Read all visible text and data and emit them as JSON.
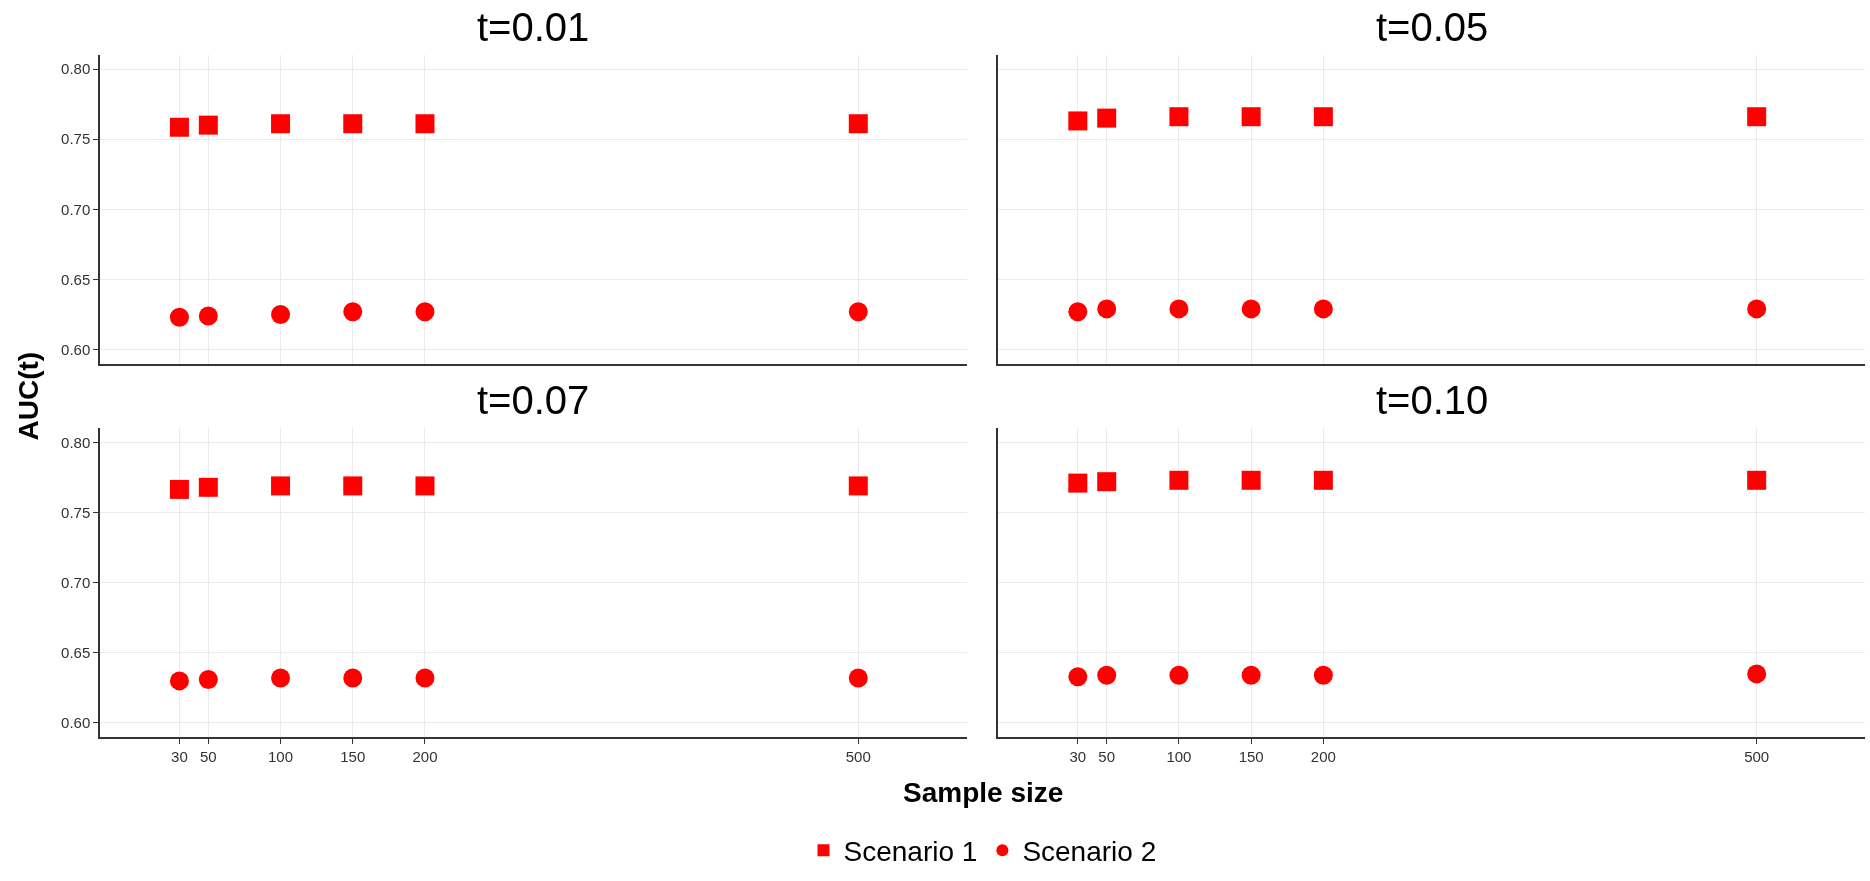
{
  "chart_data": [
    {
      "type": "scatter",
      "title": "t=0.01",
      "ylabel": "AUC(t)",
      "x": [
        30,
        50,
        100,
        150,
        200,
        500
      ],
      "xlim": [
        -25,
        575
      ],
      "xticks": [
        30,
        50,
        100,
        150,
        200,
        500
      ],
      "ylim": [
        0.59,
        0.81
      ],
      "yticks": [
        {
          "value": 0.6,
          "label": "0.60"
        },
        {
          "value": 0.65,
          "label": "0.65"
        },
        {
          "value": 0.7,
          "label": "0.70"
        },
        {
          "value": 0.75,
          "label": "0.75"
        },
        {
          "value": 0.8,
          "label": "0.80"
        }
      ],
      "tick_labels": "y",
      "grid": true,
      "legend": "bottom",
      "series": [
        {
          "name": "Scenario 1",
          "color": "#ff0000",
          "marker": "square",
          "values": [
            0.7585,
            0.76,
            0.761,
            0.761,
            0.761,
            0.761
          ]
        },
        {
          "name": "Scenario 2",
          "color": "#ff0000",
          "marker": "circle",
          "values": [
            0.623,
            0.624,
            0.625,
            0.627,
            0.627,
            0.627
          ]
        }
      ]
    },
    {
      "type": "scatter",
      "title": "t=0.05",
      "x": [
        30,
        50,
        100,
        150,
        200,
        500
      ],
      "xlim": [
        -25,
        575
      ],
      "xticks": [
        30,
        50,
        100,
        150,
        200,
        500
      ],
      "ylim": [
        0.59,
        0.81
      ],
      "yticks": [
        {
          "value": 0.6,
          "label": null
        },
        {
          "value": 0.65,
          "label": null
        },
        {
          "value": 0.7,
          "label": null
        },
        {
          "value": 0.75,
          "label": null
        },
        {
          "value": 0.8,
          "label": null
        }
      ],
      "tick_labels": false,
      "grid": true,
      "series": [
        {
          "color": "#ff0000",
          "marker": "square",
          "values": [
            0.763,
            0.765,
            0.766,
            0.766,
            0.766,
            0.766
          ]
        },
        {
          "color": "#ff0000",
          "marker": "circle",
          "values": [
            0.627,
            0.629,
            0.629,
            0.629,
            0.629,
            0.629
          ]
        }
      ]
    },
    {
      "type": "scatter",
      "title": "t=0.07",
      "xlabel": "Sample size",
      "x": [
        30,
        50,
        100,
        150,
        200,
        500
      ],
      "xlim": [
        -25,
        575
      ],
      "xticks": [
        30,
        50,
        100,
        150,
        200,
        500
      ],
      "ylim": [
        0.59,
        0.81
      ],
      "yticks": [
        {
          "value": 0.6,
          "label": "0.60"
        },
        {
          "value": 0.65,
          "label": "0.65"
        },
        {
          "value": 0.7,
          "label": "0.70"
        },
        {
          "value": 0.75,
          "label": "0.75"
        },
        {
          "value": 0.8,
          "label": "0.80"
        }
      ],
      "grid": true,
      "series": [
        {
          "color": "#ff0000",
          "marker": "square",
          "values": [
            0.7665,
            0.768,
            0.769,
            0.769,
            0.769,
            0.769
          ]
        },
        {
          "color": "#ff0000",
          "marker": "circle",
          "values": [
            0.63,
            0.631,
            0.632,
            0.632,
            0.632,
            0.632
          ]
        }
      ]
    },
    {
      "type": "scatter",
      "title": "t=0.10",
      "x": [
        30,
        50,
        100,
        150,
        200,
        500
      ],
      "xlim": [
        -25,
        575
      ],
      "xticks": [
        30,
        50,
        100,
        150,
        200,
        500
      ],
      "ylim": [
        0.59,
        0.81
      ],
      "yticks": [
        {
          "value": 0.6,
          "label": null
        },
        {
          "value": 0.65,
          "label": null
        },
        {
          "value": 0.7,
          "label": null
        },
        {
          "value": 0.75,
          "label": null
        },
        {
          "value": 0.8,
          "label": null
        }
      ],
      "tick_labels": "x",
      "grid": true,
      "series": [
        {
          "color": "#ff0000",
          "marker": "square",
          "values": [
            0.771,
            0.772,
            0.773,
            0.773,
            0.773,
            0.773
          ]
        },
        {
          "color": "#ff0000",
          "marker": "circle",
          "values": [
            0.633,
            0.634,
            0.634,
            0.634,
            0.634,
            0.635
          ]
        }
      ]
    }
  ]
}
